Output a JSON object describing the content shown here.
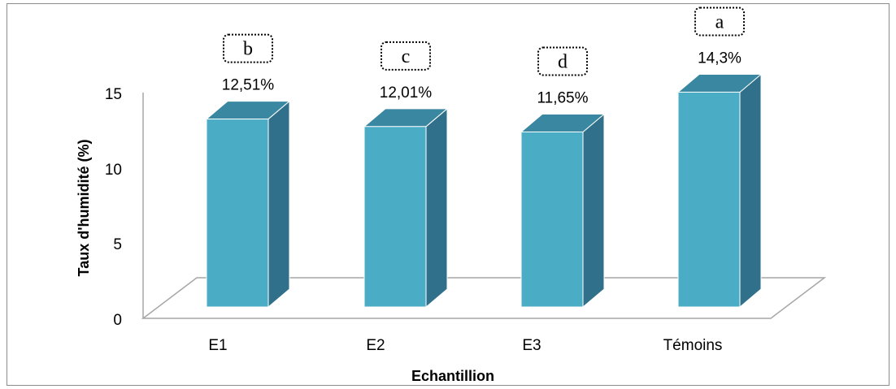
{
  "chart_data": {
    "type": "bar",
    "categories": [
      "E1",
      "E2",
      "E3",
      "Témoins"
    ],
    "values": [
      12.51,
      12.01,
      11.65,
      14.3
    ],
    "data_labels": [
      "12,51%",
      "12,01%",
      "11,65%",
      "14,3%"
    ],
    "significance_letters": [
      "b",
      "c",
      "d",
      "a"
    ],
    "xlabel": "Echantillion",
    "ylabel": "Taux d'humidité (%)",
    "ylim": [
      0,
      15
    ],
    "yticks": [
      "0",
      "5",
      "10",
      "15"
    ],
    "grid": false,
    "legend": "none",
    "colors": {
      "bar_front": "#4bacc6",
      "bar_side": "#31708a",
      "bar_top": "#3a87a1",
      "bar_edge": "#ffffff",
      "floor": "#ffffff",
      "floor_edge": "#a6a6a6",
      "axis_line": "#a6a6a6",
      "frame": "#8c8c8c"
    }
  }
}
